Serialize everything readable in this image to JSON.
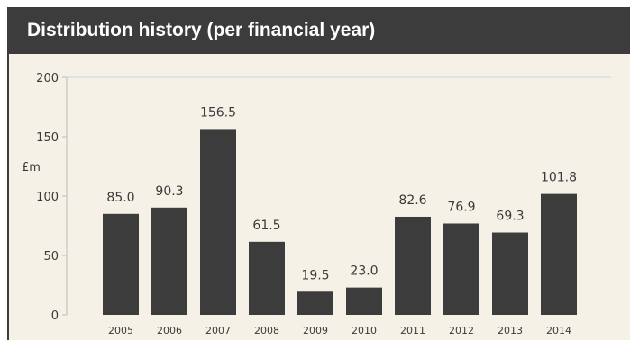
{
  "chart_data": {
    "type": "bar",
    "title": "Distribution history (per financial year)",
    "ylabel": "£m",
    "xlabel": "",
    "categories": [
      "2005",
      "2006",
      "2007",
      "2008",
      "2009",
      "2010",
      "2011",
      "2012",
      "2013",
      "2014"
    ],
    "values": [
      85.0,
      90.3,
      156.5,
      61.5,
      19.5,
      23.0,
      82.6,
      76.9,
      69.3,
      101.8
    ],
    "value_labels": [
      "85.0",
      "90.3",
      "156.5",
      "61.5",
      "19.5",
      "23.0",
      "82.6",
      "76.9",
      "69.3",
      "101.8"
    ],
    "yticks": [
      "0",
      "50",
      "100",
      "150",
      "200"
    ],
    "ylim": [
      0,
      200
    ],
    "grid": false,
    "colors": {
      "bar": "#3c3c3c",
      "title_bar": "#3c3c3c",
      "background": "#f6f1e7",
      "top_line": "#bcd9e6",
      "text": "#3a3a3a"
    }
  }
}
